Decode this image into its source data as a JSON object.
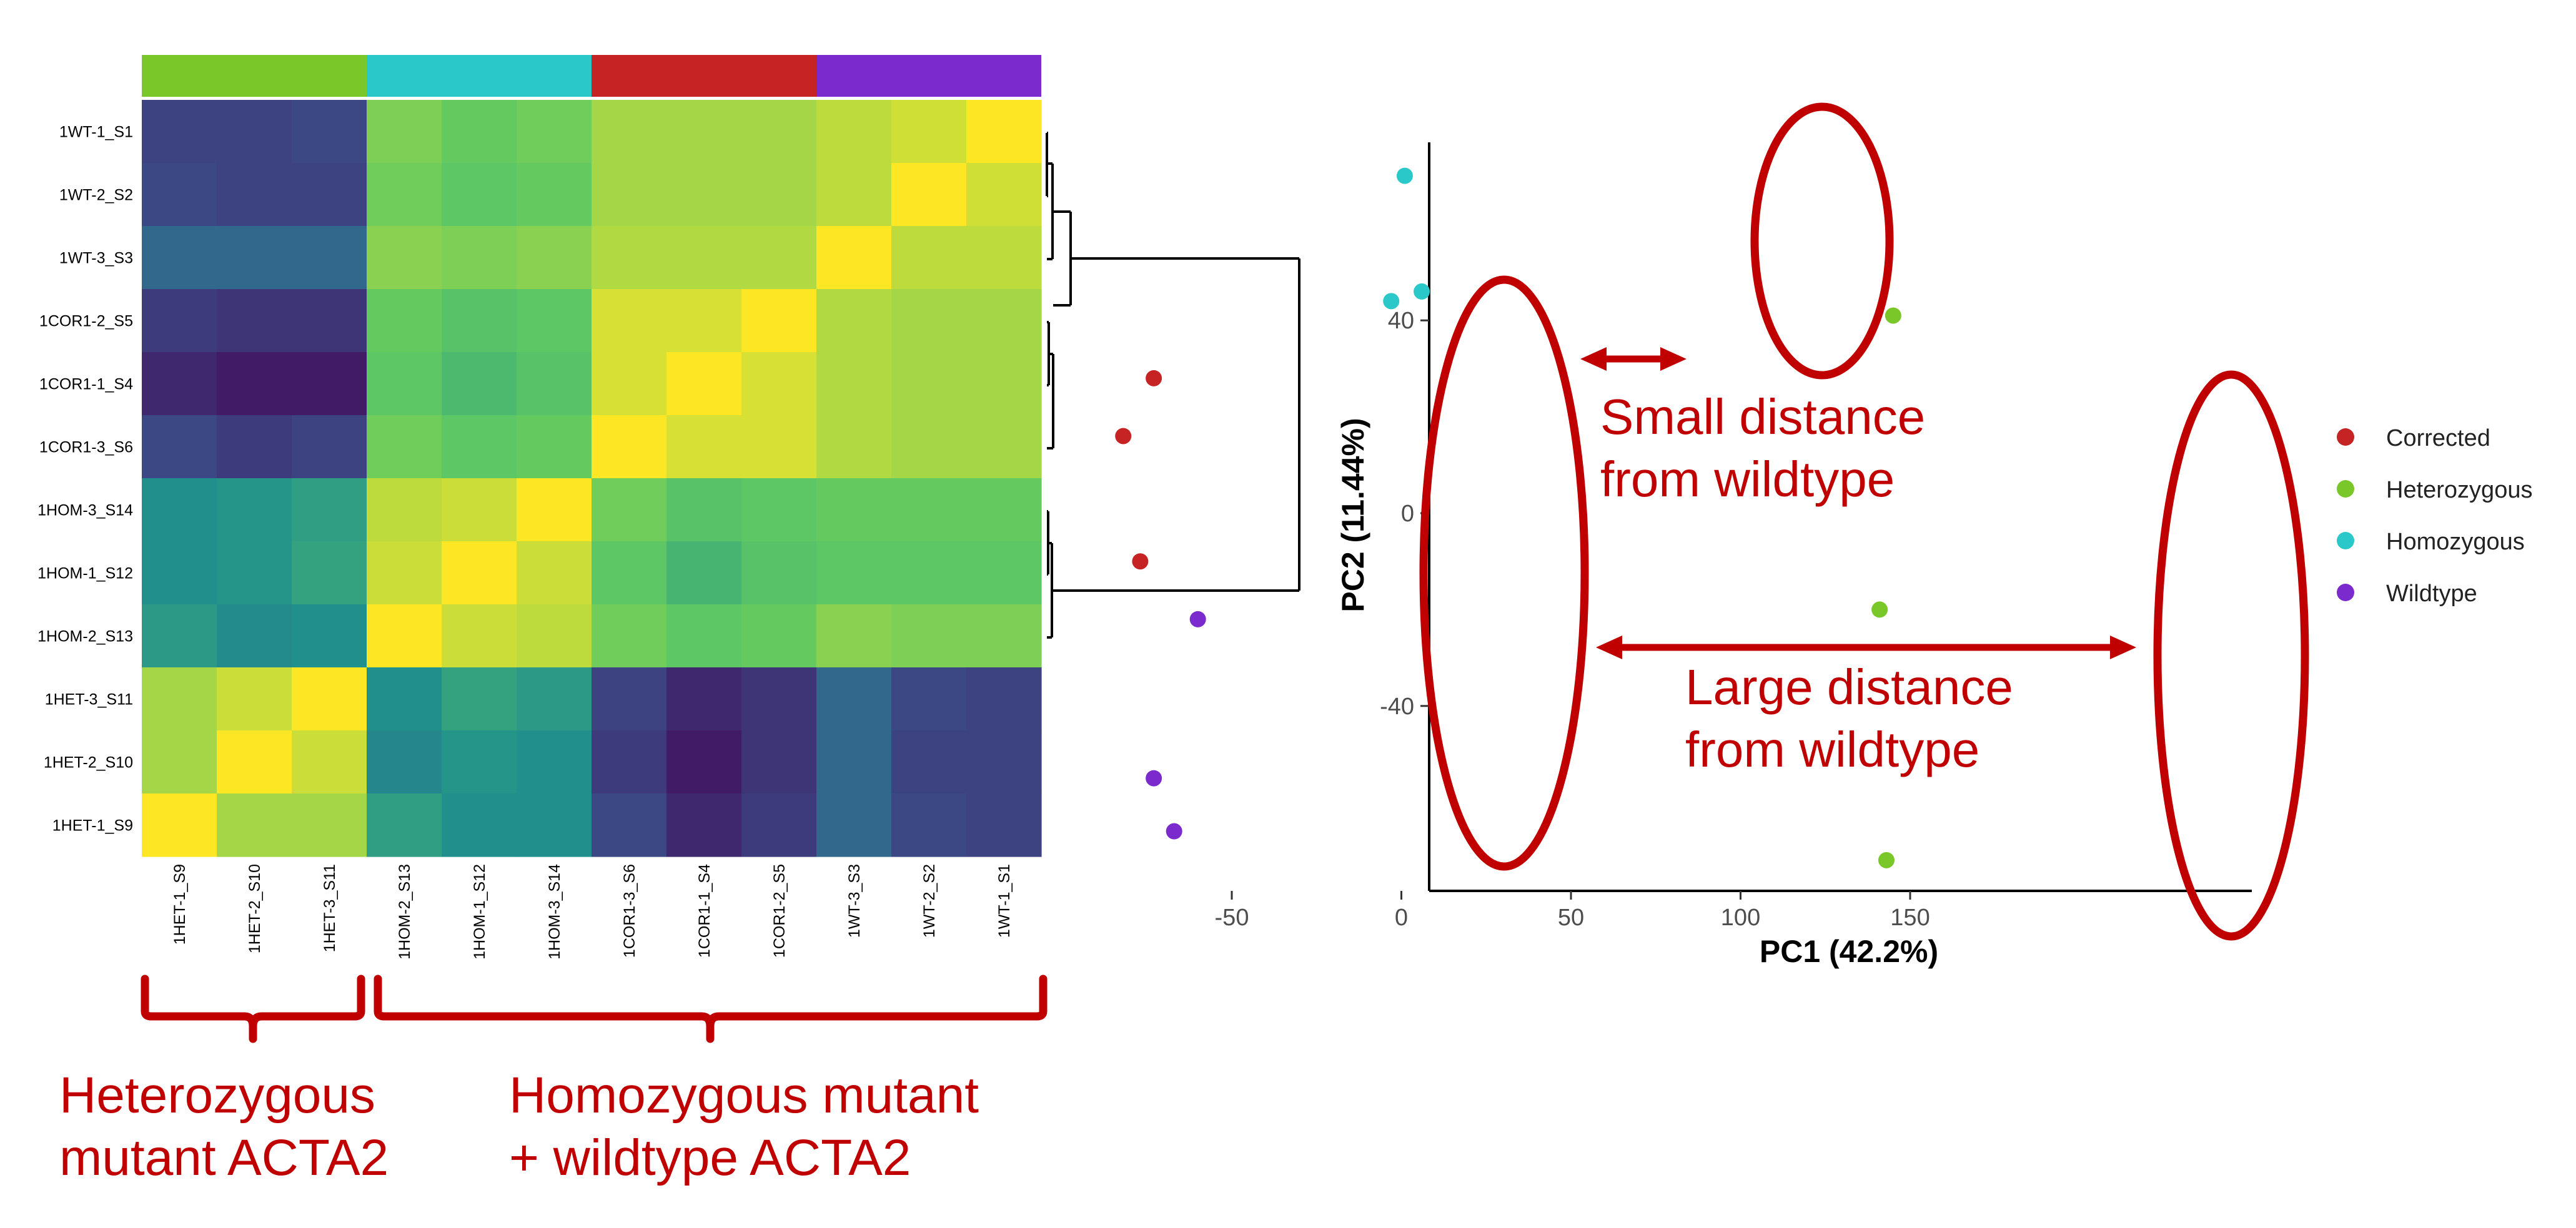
{
  "chart_data": [
    {
      "type": "heatmap",
      "row_labels": [
        "1WT-1_S1",
        "1WT-2_S2",
        "1WT-3_S3",
        "1COR1-2_S5",
        "1COR1-1_S4",
        "1COR1-3_S6",
        "1HOM-3_S14",
        "1HOM-1_S12",
        "1HOM-2_S13",
        "1HET-3_S11",
        "1HET-2_S10",
        "1HET-1_S9"
      ],
      "column_labels": [
        "1HET-1_S9",
        "1HET-2_S10",
        "1HET-3_S11",
        "1HOM-2_S13",
        "1HOM-1_S12",
        "1HOM-3_S14",
        "1COR1-3_S6",
        "1COR1-1_S4",
        "1COR1-2_S5",
        "1WT-3_S3",
        "1WT-2_S2",
        "1WT-1_S1"
      ],
      "values": [
        [
          0.2,
          0.2,
          0.22,
          0.8,
          0.76,
          0.78,
          0.86,
          0.86,
          0.86,
          0.9,
          0.93,
          1.0
        ],
        [
          0.22,
          0.2,
          0.2,
          0.78,
          0.74,
          0.76,
          0.86,
          0.86,
          0.86,
          0.9,
          1.0,
          0.93
        ],
        [
          0.34,
          0.34,
          0.34,
          0.82,
          0.8,
          0.82,
          0.88,
          0.88,
          0.88,
          1.0,
          0.9,
          0.9
        ],
        [
          0.18,
          0.16,
          0.16,
          0.76,
          0.72,
          0.74,
          0.94,
          0.94,
          1.0,
          0.88,
          0.86,
          0.86
        ],
        [
          0.12,
          0.08,
          0.08,
          0.74,
          0.68,
          0.72,
          0.94,
          1.0,
          0.94,
          0.88,
          0.86,
          0.86
        ],
        [
          0.22,
          0.18,
          0.2,
          0.78,
          0.74,
          0.76,
          1.0,
          0.94,
          0.94,
          0.88,
          0.86,
          0.86
        ],
        [
          0.5,
          0.52,
          0.56,
          0.9,
          0.92,
          1.0,
          0.78,
          0.72,
          0.74,
          0.76,
          0.76,
          0.76
        ],
        [
          0.5,
          0.52,
          0.58,
          0.92,
          1.0,
          0.92,
          0.74,
          0.66,
          0.72,
          0.74,
          0.74,
          0.74
        ],
        [
          0.54,
          0.48,
          0.5,
          1.0,
          0.92,
          0.9,
          0.78,
          0.74,
          0.76,
          0.82,
          0.8,
          0.8
        ],
        [
          0.86,
          0.92,
          1.0,
          0.5,
          0.58,
          0.54,
          0.2,
          0.12,
          0.16,
          0.34,
          0.22,
          0.2
        ],
        [
          0.86,
          1.0,
          0.92,
          0.46,
          0.52,
          0.5,
          0.18,
          0.08,
          0.16,
          0.34,
          0.2,
          0.2
        ],
        [
          1.0,
          0.86,
          0.86,
          0.56,
          0.5,
          0.5,
          0.22,
          0.12,
          0.18,
          0.34,
          0.22,
          0.2
        ]
      ],
      "color_scale": [
        "#440154",
        "#3b528b",
        "#21908c",
        "#5ec962",
        "#fde725"
      ],
      "column_groups": [
        {
          "span": 3,
          "color": "#7ac72a"
        },
        {
          "span": 3,
          "color": "#2ac8c8"
        },
        {
          "span": 3,
          "color": "#c62424"
        },
        {
          "span": 3,
          "color": "#7b2acd"
        }
      ],
      "brace_labels": [
        [
          "Heterozygous",
          "mutant ACTA2"
        ],
        [
          "Homozygous mutant",
          "+ wildtype ACTA2"
        ]
      ],
      "annotation_color": "#c00000"
    },
    {
      "type": "scatter",
      "xlabel": "PC1 (42.2%)",
      "ylabel": "PC2 (11.44%)",
      "xlim": [
        -93,
        158
      ],
      "ylim": [
        -80,
        77
      ],
      "xticks": [
        -50,
        0,
        50,
        100,
        150
      ],
      "yticks": [
        40,
        0,
        -40
      ],
      "legend": "right",
      "series": [
        {
          "name": "Corrected",
          "color": "#c62424",
          "points": [
            [
              -73,
              28
            ],
            [
              -82,
              16
            ],
            [
              -77,
              -10
            ]
          ]
        },
        {
          "name": "Heterozygous",
          "color": "#7ac72a",
          "points": [
            [
              145,
              41
            ],
            [
              141,
              -20
            ],
            [
              143,
              -72
            ]
          ]
        },
        {
          "name": "Homozygous",
          "color": "#2ac8c8",
          "points": [
            [
              1,
              70
            ],
            [
              -3,
              44
            ],
            [
              6,
              46
            ]
          ]
        },
        {
          "name": "Wildtype",
          "color": "#7b2acd",
          "points": [
            [
              -60,
              -22
            ],
            [
              -73,
              -55
            ],
            [
              -67,
              -66
            ]
          ]
        }
      ],
      "annotations": [
        [
          "Small distance",
          "from wildtype"
        ],
        [
          "Large distance",
          "from wildtype"
        ]
      ]
    }
  ]
}
